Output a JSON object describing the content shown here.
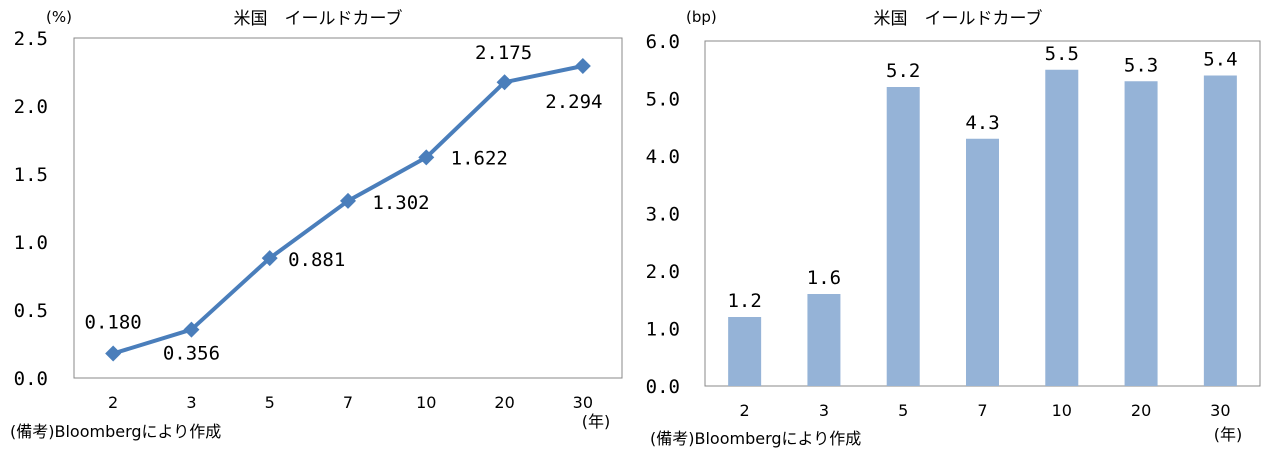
{
  "chart_data": [
    {
      "type": "line",
      "title": "米国　イールドカーブ",
      "ylabel": "(%)",
      "xunit": "(年)",
      "note": "(備考)Bloombergにより作成",
      "categories": [
        "2",
        "3",
        "5",
        "7",
        "10",
        "20",
        "30"
      ],
      "values": [
        0.18,
        0.356,
        0.881,
        1.302,
        1.622,
        2.175,
        2.294
      ],
      "value_labels": [
        "0.180",
        "0.356",
        "0.881",
        "1.302",
        "1.622",
        "2.175",
        "2.294"
      ],
      "ylim": [
        0,
        2.5
      ],
      "yticks": [
        "0.0",
        "0.5",
        "1.0",
        "1.5",
        "2.0",
        "2.5"
      ],
      "color": "#4a7ebb",
      "grid": false
    },
    {
      "type": "bar",
      "title": "米国　イールドカーブ",
      "ylabel": "(bp)",
      "xunit": "(年)",
      "note": "(備考)Bloombergにより作成",
      "categories": [
        "2",
        "3",
        "5",
        "7",
        "10",
        "20",
        "30"
      ],
      "values": [
        1.2,
        1.6,
        5.2,
        4.3,
        5.5,
        5.3,
        5.4
      ],
      "value_labels": [
        "1.2",
        "1.6",
        "5.2",
        "4.3",
        "5.5",
        "5.3",
        "5.4"
      ],
      "ylim": [
        0,
        6.0
      ],
      "yticks": [
        "0.0",
        "1.0",
        "2.0",
        "3.0",
        "4.0",
        "5.0",
        "6.0"
      ],
      "color": "#95b3d7",
      "grid": false
    }
  ]
}
